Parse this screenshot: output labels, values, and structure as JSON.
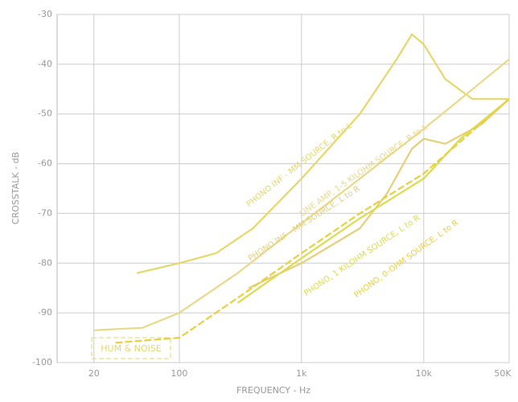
{
  "chart_data": {
    "type": "line",
    "x_label": "FREQUENCY - Hz",
    "y_label": "CROSSTALK - dB",
    "annotation": "HUM & NOISE",
    "xlog": true,
    "xlim": [
      10,
      50000
    ],
    "ylim": [
      -100,
      -30
    ],
    "xticks": [
      20,
      100,
      {
        "value": 1000,
        "label": "1k"
      },
      {
        "value": 10000,
        "label": "10k"
      },
      {
        "value": 50000,
        "label": "50K"
      }
    ],
    "yticks": [
      -100,
      -90,
      -80,
      -70,
      -60,
      -50,
      -40,
      -30
    ],
    "grid": true,
    "series": [
      {
        "name": "PHONO INF - MM SOURCE, R to L",
        "color": "#e3d869",
        "x": [
          45,
          100,
          200,
          400,
          1000,
          3000,
          6000,
          8000,
          10000,
          15000,
          25000,
          40000,
          50000
        ],
        "values": [
          -82,
          -80,
          -78,
          -73,
          -63,
          -50,
          -39,
          -34,
          -36,
          -43,
          -47,
          -47,
          -47
        ]
      },
      {
        "name": "LINE AMP, 1-5 KILOHM SOURCE, R to L",
        "color": "#e8d98a",
        "x": [
          20,
          50,
          100,
          300,
          1000,
          3000,
          10000,
          20000,
          50000
        ],
        "values": [
          -93.5,
          -93,
          -90,
          -82,
          -72,
          -63,
          -53,
          -47,
          -39
        ]
      },
      {
        "name": "PHONO INF - MM SOURCE, L to R",
        "color": "#e6cf7a",
        "x": [
          370,
          1000,
          3000,
          5000,
          8000,
          10000,
          15000,
          30000,
          50000
        ],
        "values": [
          -85,
          -80,
          -73,
          -66,
          -57,
          -55,
          -56,
          -52,
          -47
        ]
      },
      {
        "name": "PHONO, 1 KILOHM SOURCE, L to R",
        "color": "#dcdc50",
        "x": [
          300,
          1000,
          3000,
          10000,
          20000,
          50000
        ],
        "values": [
          -88,
          -79,
          -71,
          -63,
          -55,
          -47
        ]
      },
      {
        "name": "PHONO, 0-OHM SOURCE, L to R",
        "color": "#e8d040",
        "x": [
          30,
          100,
          300,
          1000,
          3000,
          10000,
          50000
        ],
        "values": [
          -96,
          -95,
          -87,
          -78,
          -70,
          -62,
          -47
        ]
      }
    ]
  }
}
